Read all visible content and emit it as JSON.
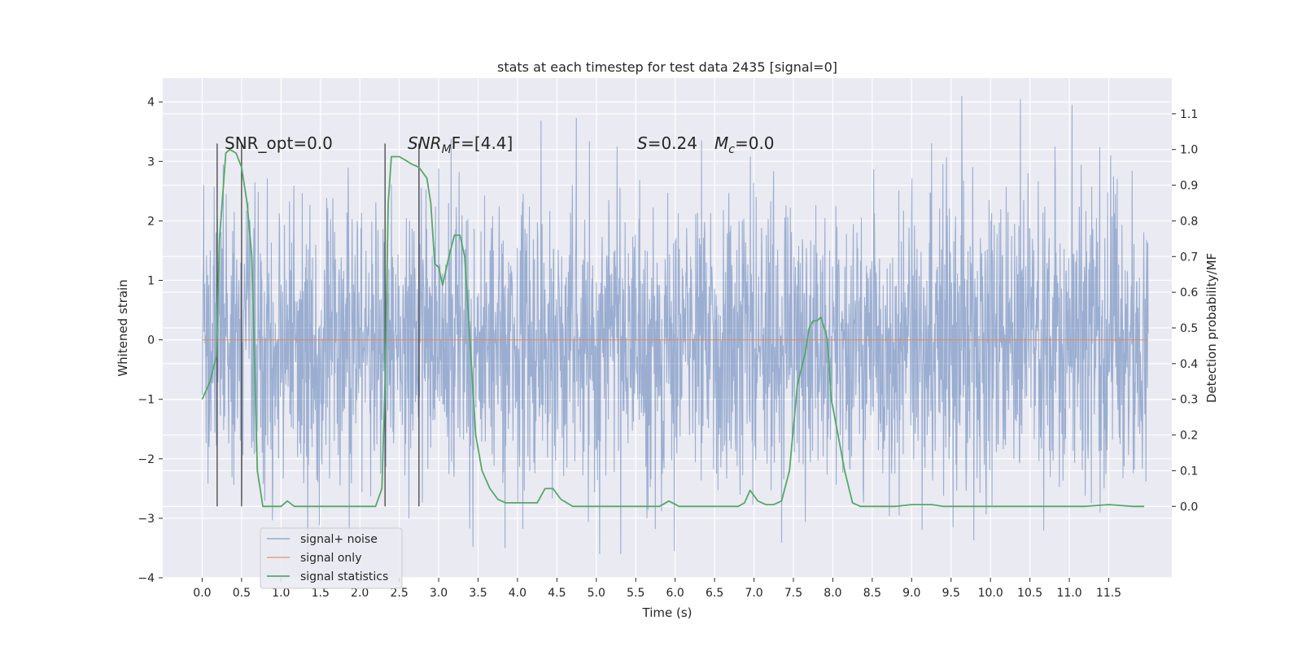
{
  "chart_data": {
    "type": "line",
    "title": "stats at each timestep for test data 2435 [signal=0]",
    "xlabel": "Time (s)",
    "ylabel": "Whitened strain",
    "ylabel_right": "Detection probability/MF",
    "xlim": [
      -0.5,
      12.3
    ],
    "ylim": [
      -4.0,
      4.4
    ],
    "ylim_right": [
      -0.2,
      1.2
    ],
    "xticks": [
      0.0,
      0.5,
      1.0,
      1.5,
      2.0,
      2.5,
      3.0,
      3.5,
      4.0,
      4.5,
      5.0,
      5.5,
      6.0,
      6.5,
      7.0,
      7.5,
      8.0,
      8.5,
      9.0,
      9.5,
      10.0,
      10.5,
      11.0,
      11.5
    ],
    "xtick_labels": [
      "0.0",
      "0.5",
      "1.0",
      "1.5",
      "2.0",
      "2.5",
      "3.0",
      "3.5",
      "4.0",
      "4.5",
      "5.0",
      "5.5",
      "6.0",
      "6.5",
      "7.0",
      "7.5",
      "8.0",
      "8.5",
      "9.0",
      "9.5",
      "10.0",
      "10.5",
      "11.0",
      "11.5"
    ],
    "yticks": [
      -4,
      -3,
      -2,
      -1,
      0,
      1,
      2,
      3,
      4
    ],
    "ytick_labels": [
      "−4",
      "−3",
      "−2",
      "−1",
      "0",
      "1",
      "2",
      "3",
      "4"
    ],
    "yticks_right": [
      0.0,
      0.1,
      0.2,
      0.3,
      0.4,
      0.5,
      0.6,
      0.7,
      0.8,
      0.9,
      1.0,
      1.1
    ],
    "ytick_labels_right": [
      "0.0",
      "0.1",
      "0.2",
      "0.3",
      "0.4",
      "0.5",
      "0.6",
      "0.7",
      "0.8",
      "0.9",
      "1.0",
      "1.1"
    ],
    "grid": true,
    "legend_position": "lower-left",
    "colors": {
      "background": "#eaeaf2",
      "grid": "#ffffff",
      "noise": "#4c72b0",
      "signal_only": "#dd8452",
      "statistics": "#55a868",
      "vlines": "#444444"
    },
    "series": [
      {
        "name": "signal+ noise",
        "axis": "left",
        "x_range": [
          0.0,
          12.0
        ],
        "typical_amplitude": 1.4,
        "peak_max": 4.1,
        "peak_min": -3.6
      },
      {
        "name": "signal only",
        "axis": "left",
        "x": [
          0.0,
          12.0
        ],
        "y": [
          0.0,
          0.0
        ]
      },
      {
        "name": "signal statistics",
        "axis": "right",
        "x": [
          0.0,
          0.1,
          0.18,
          0.22,
          0.3,
          0.35,
          0.43,
          0.5,
          0.57,
          0.63,
          0.7,
          0.77,
          0.82,
          0.9,
          1.0,
          1.08,
          1.17,
          1.25,
          1.4,
          1.7,
          2.0,
          2.2,
          2.28,
          2.32,
          2.36,
          2.4,
          2.45,
          2.5,
          2.58,
          2.65,
          2.75,
          2.85,
          2.9,
          2.95,
          3.0,
          3.05,
          3.13,
          3.2,
          3.27,
          3.33,
          3.4,
          3.47,
          3.55,
          3.65,
          3.75,
          3.85,
          4.0,
          4.15,
          4.25,
          4.35,
          4.45,
          4.55,
          4.7,
          5.0,
          5.5,
          5.8,
          5.92,
          6.05,
          6.4,
          6.8,
          6.88,
          6.95,
          7.05,
          7.15,
          7.25,
          7.35,
          7.45,
          7.55,
          7.65,
          7.7,
          7.75,
          7.8,
          7.85,
          7.93,
          7.98,
          8.05,
          8.15,
          8.25,
          8.35,
          8.5,
          8.8,
          9.0,
          9.1,
          9.25,
          9.4,
          9.6,
          10.0,
          10.5,
          11.0,
          11.2,
          11.5,
          11.8,
          11.95
        ],
        "y": [
          0.3,
          0.35,
          0.42,
          0.75,
          0.99,
          1.0,
          0.99,
          0.95,
          0.85,
          0.7,
          0.1,
          0.0,
          0.0,
          0.0,
          0.0,
          0.015,
          0.0,
          0.0,
          0.0,
          0.0,
          0.0,
          0.0,
          0.05,
          0.35,
          0.85,
          0.98,
          0.98,
          0.98,
          0.97,
          0.96,
          0.95,
          0.92,
          0.85,
          0.68,
          0.67,
          0.62,
          0.7,
          0.76,
          0.76,
          0.7,
          0.45,
          0.2,
          0.1,
          0.05,
          0.02,
          0.01,
          0.01,
          0.01,
          0.01,
          0.05,
          0.05,
          0.02,
          0.0,
          0.0,
          0.0,
          0.0,
          0.015,
          0.0,
          0.0,
          0.0,
          0.01,
          0.045,
          0.015,
          0.005,
          0.005,
          0.015,
          0.1,
          0.34,
          0.43,
          0.5,
          0.52,
          0.52,
          0.53,
          0.47,
          0.3,
          0.22,
          0.1,
          0.01,
          0.0,
          0.0,
          0.0,
          0.005,
          0.005,
          0.005,
          0.0,
          0.0,
          0.0,
          0.0,
          0.0,
          0.0,
          0.005,
          0.0,
          0.0
        ]
      }
    ],
    "vertical_lines": [
      {
        "x": 0.19,
        "ymin": -2.8,
        "ymax": 3.3
      },
      {
        "x": 0.5,
        "ymin": -2.8,
        "ymax": 3.3
      },
      {
        "x": 2.32,
        "ymin": -2.8,
        "ymax": 3.3
      },
      {
        "x": 2.75,
        "ymin": -2.8,
        "ymax": 3.3
      }
    ],
    "annotations": {
      "snr_opt": "SNR_opt=0.0",
      "snr_mf_main": "SNR",
      "snr_mf_sub": "M",
      "snr_mf_rest": "F=[4.4]",
      "s_var": "S",
      "s_value": "=0.24",
      "mc_var": "M",
      "mc_sub": "c",
      "mc_value": "=0.0"
    }
  }
}
